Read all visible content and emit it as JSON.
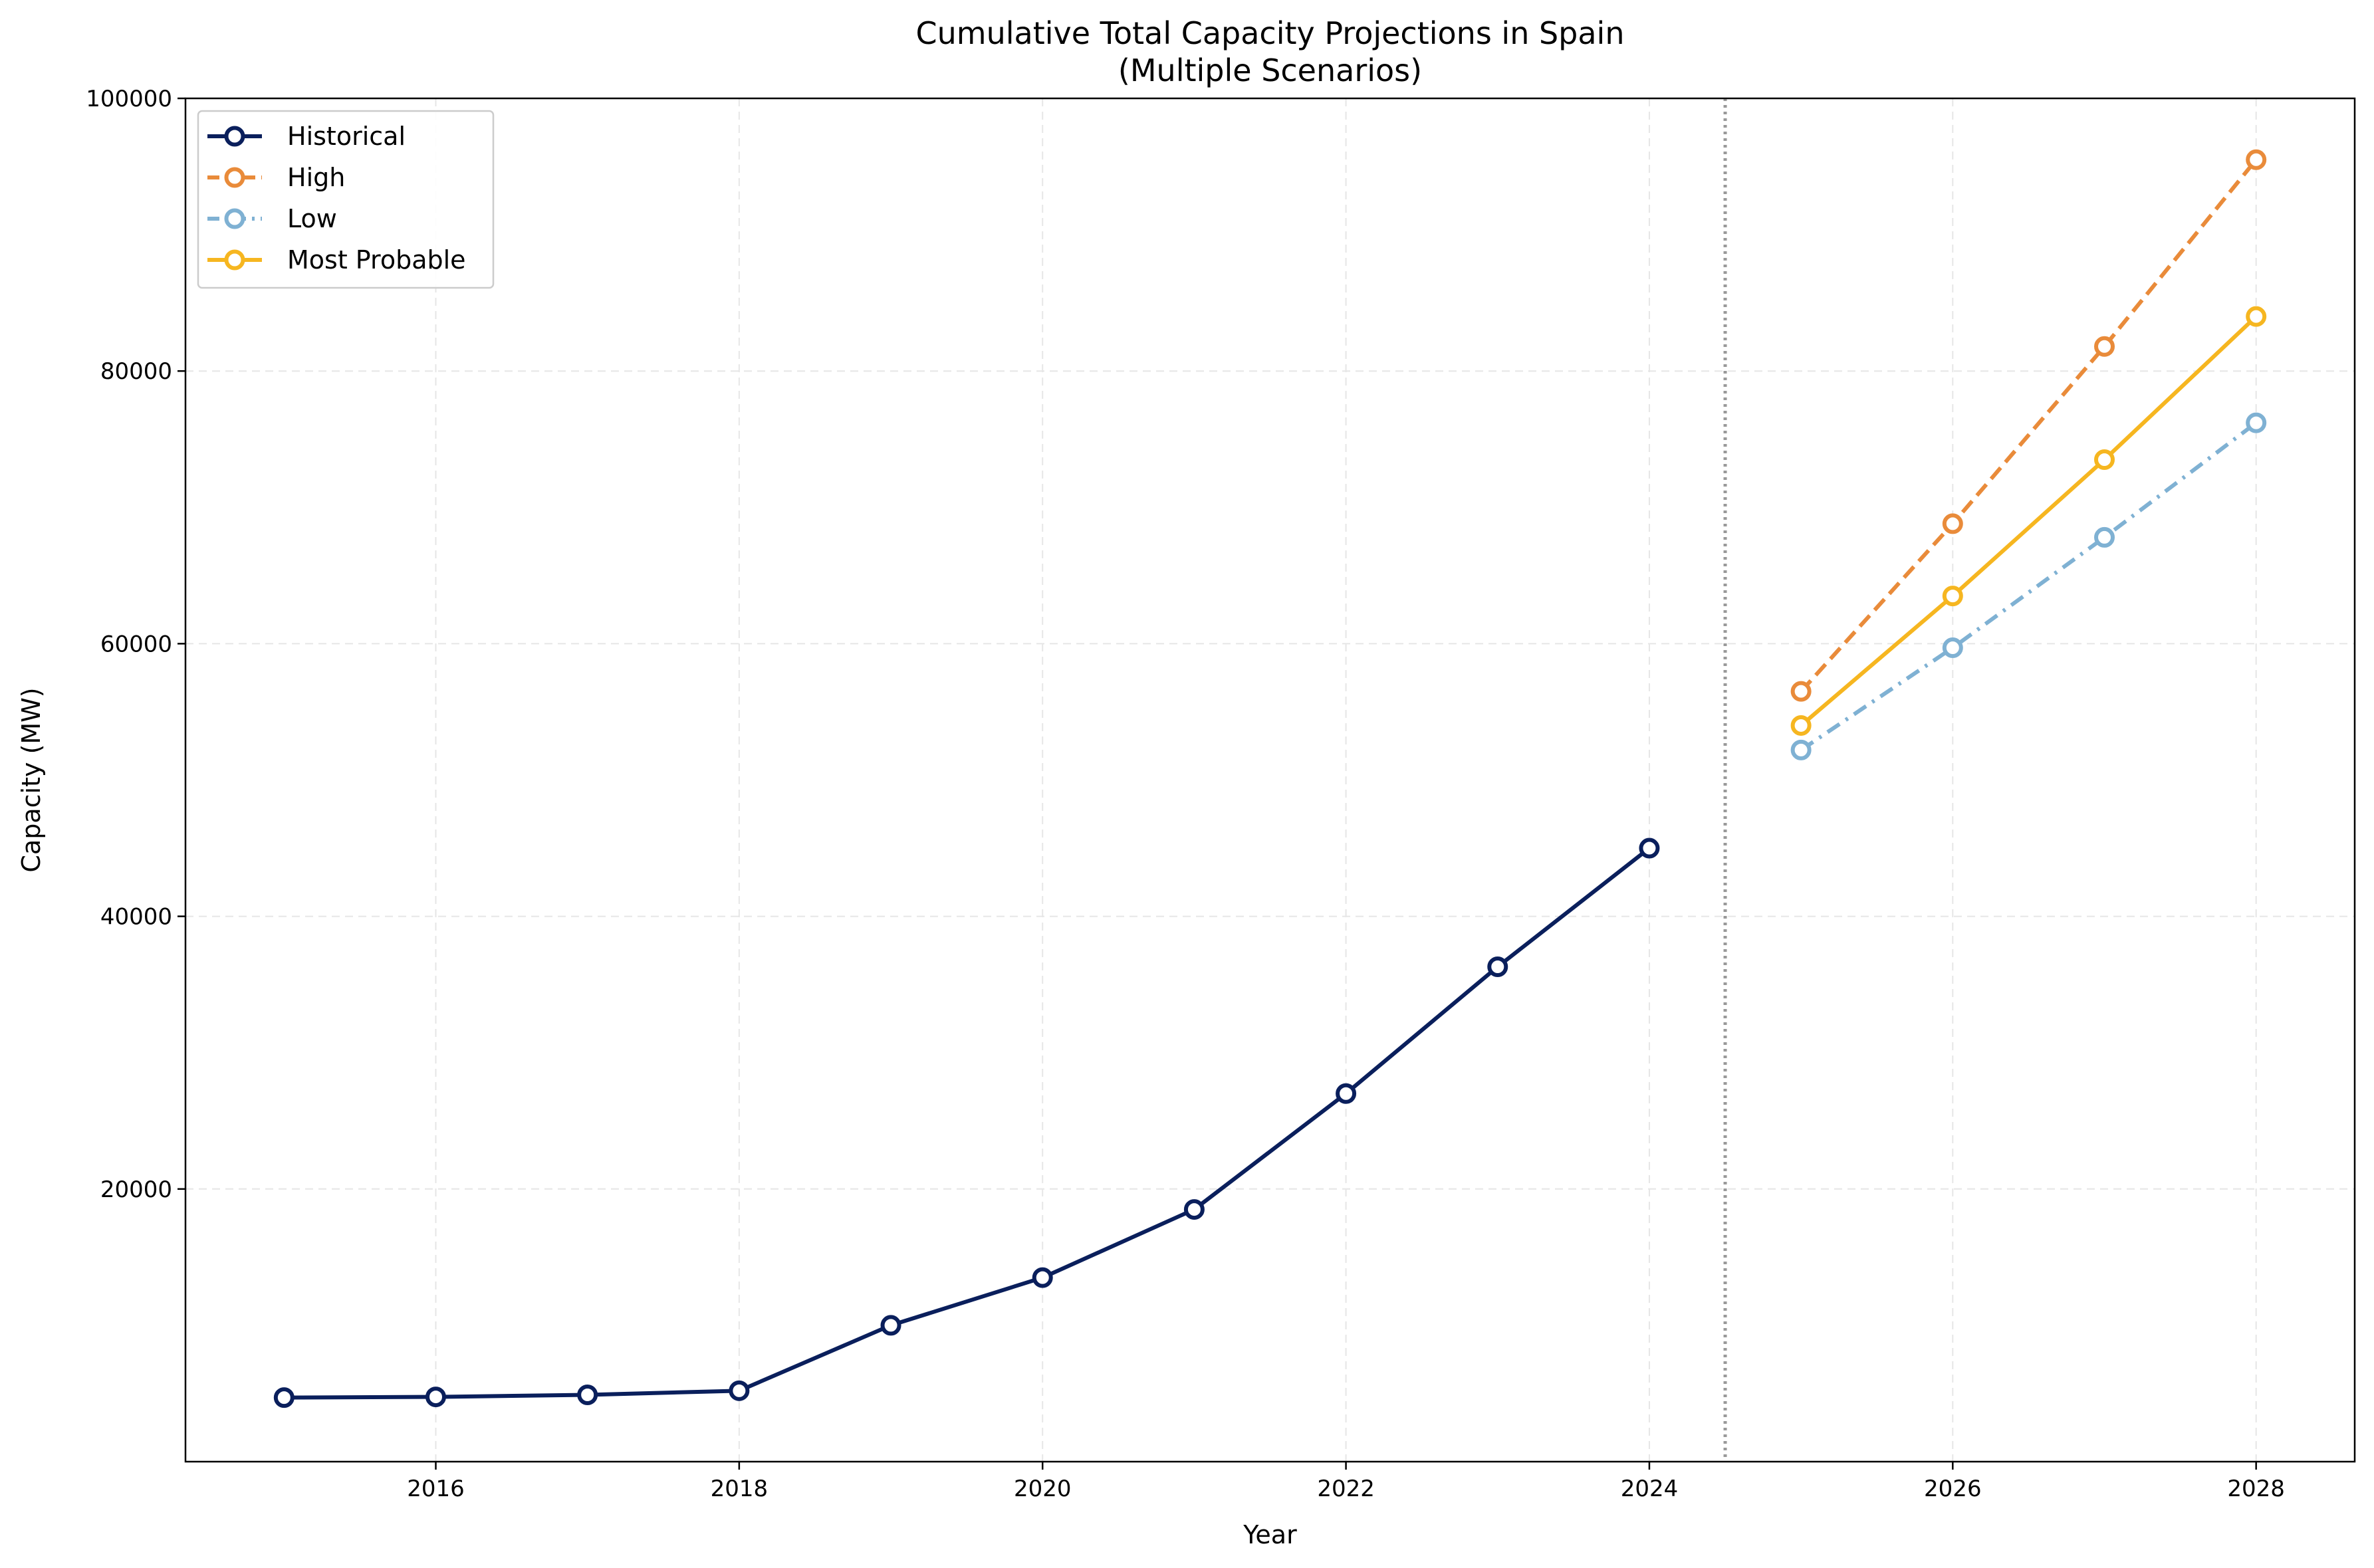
{
  "chart_data": {
    "type": "line",
    "title": "Cumulative Total Capacity Projections in Spain",
    "subtitle": "(Multiple Scenarios)",
    "xlabel": "Year",
    "ylabel": "Capacity (MW)",
    "xlim": [
      2014.35,
      2028.65
    ],
    "ylim": [
      0,
      100000
    ],
    "xticks": [
      2016,
      2018,
      2020,
      2022,
      2024,
      2026,
      2028
    ],
    "yticks": [
      20000,
      40000,
      60000,
      80000,
      100000
    ],
    "grid": true,
    "legend_position": "top-left",
    "divider_x": 2024.5,
    "series": [
      {
        "name": "Historical",
        "color": "#0a1f5c",
        "style": "solid",
        "x": [
          2015,
          2016,
          2017,
          2018,
          2019,
          2020,
          2021,
          2022,
          2023,
          2024
        ],
        "y": [
          4700,
          4750,
          4900,
          5200,
          10000,
          13500,
          18500,
          27000,
          36300,
          45000
        ]
      },
      {
        "name": "High",
        "color": "#e98b3a",
        "style": "dashed",
        "x": [
          2025,
          2026,
          2027,
          2028
        ],
        "y": [
          56500,
          68800,
          81800,
          95500
        ]
      },
      {
        "name": "Low",
        "color": "#7fb1d3",
        "style": "dashdot",
        "x": [
          2025,
          2026,
          2027,
          2028
        ],
        "y": [
          52200,
          59700,
          67800,
          76200
        ]
      },
      {
        "name": "Most Probable",
        "color": "#f6b620",
        "style": "solid",
        "x": [
          2025,
          2026,
          2027,
          2028
        ],
        "y": [
          54000,
          63500,
          73500,
          84000
        ]
      }
    ]
  }
}
